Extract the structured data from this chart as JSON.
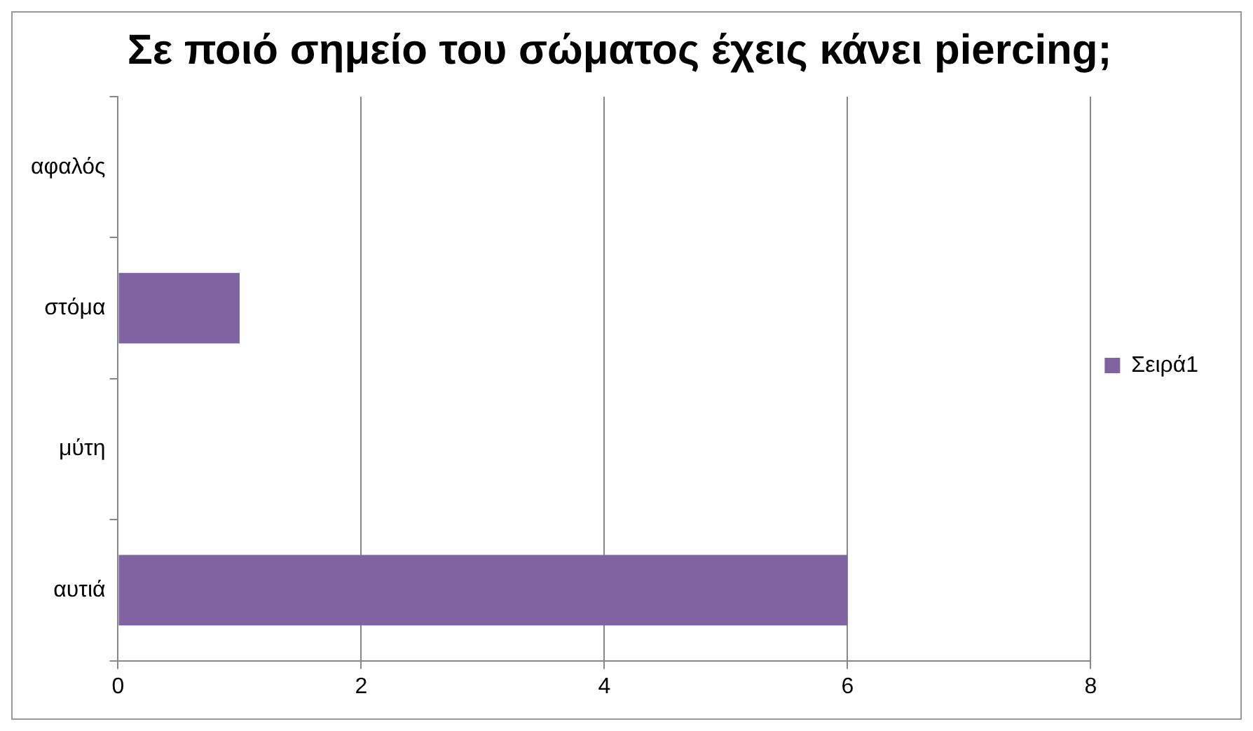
{
  "chart_data": {
    "type": "bar",
    "orientation": "horizontal",
    "title": "Σε ποιό σημείο του σώματος έχεις κάνει piercing;",
    "categories": [
      "αφαλός",
      "στόμα",
      "μύτη",
      "αυτιά"
    ],
    "series": [
      {
        "name": "Σειρά1",
        "color": "#8064a2",
        "values": [
          0,
          1,
          0,
          6
        ]
      }
    ],
    "xlim": [
      0,
      8
    ],
    "xticks": [
      0,
      2,
      4,
      6,
      8
    ],
    "grid": "x",
    "legend": "right"
  }
}
